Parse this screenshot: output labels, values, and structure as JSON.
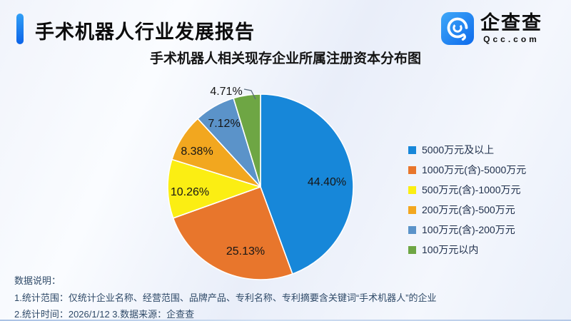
{
  "header": {
    "report_title": "手术机器人行业发展报告",
    "logo": {
      "name": "企查查",
      "domain": "Qcc.com"
    }
  },
  "chart_data": {
    "type": "pie",
    "title": "手术机器人相关现存企业所属注册资本分布图",
    "legend_position": "right",
    "start_angle_deg": 0,
    "direction": "clockwise",
    "slices": [
      {
        "label": "5000万元及以上",
        "value": 44.4,
        "display": "44.40%",
        "color": "#1787d9"
      },
      {
        "label": "1000万元(含)-5000万元",
        "value": 25.13,
        "display": "25.13%",
        "color": "#e8762c"
      },
      {
        "label": "500万元(含)-1000万元",
        "value": 10.26,
        "display": "10.26%",
        "color": "#fbee13"
      },
      {
        "label": "200万元(含)-500万元",
        "value": 8.38,
        "display": "8.38%",
        "color": "#f2a71f"
      },
      {
        "label": "100万元(含)-200万元",
        "value": 7.12,
        "display": "7.12%",
        "color": "#5b93c9"
      },
      {
        "label": "100万元以内",
        "value": 4.71,
        "display": "4.71%",
        "color": "#6ea644"
      }
    ]
  },
  "notes": {
    "heading": "数据说明：",
    "line1": "1.统计范围：仅统计企业名称、经营范围、品牌产品、专利名称、专利摘要含关键词“手术机器人”的企业",
    "line2": "2.统计时间：2026/1/12  3.数据来源：企查查"
  }
}
